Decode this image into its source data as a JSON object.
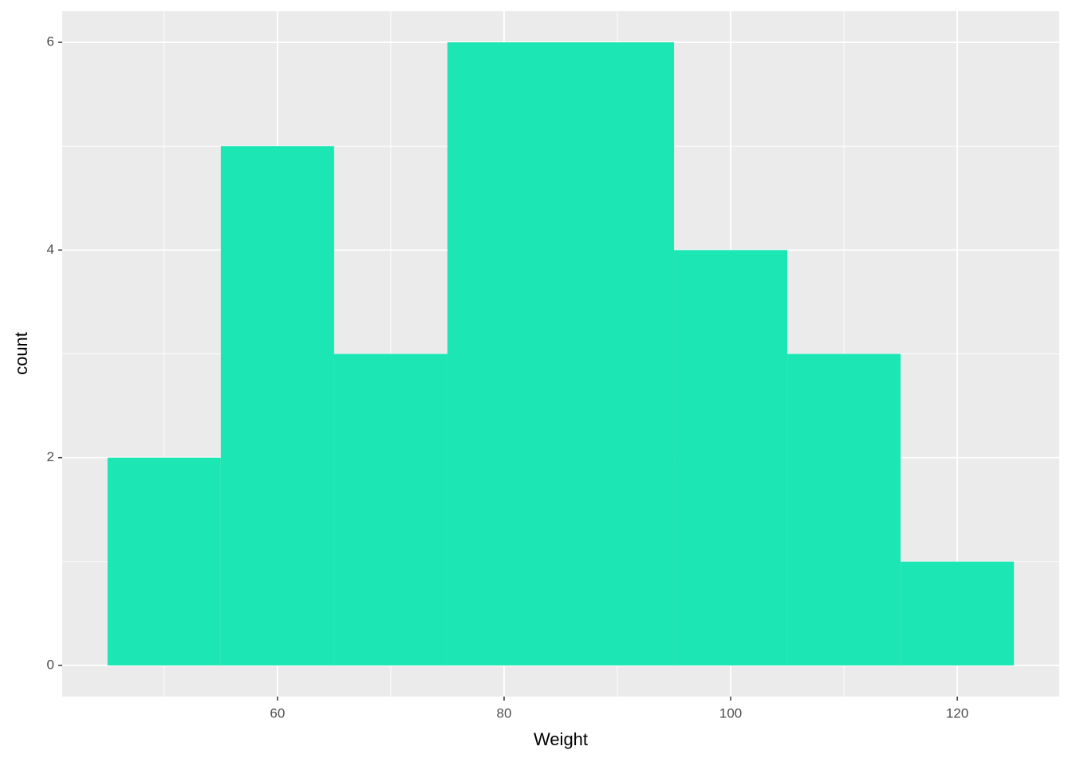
{
  "chart_data": {
    "type": "histogram",
    "x_label": "Weight",
    "y_label": "count",
    "bins": [
      45,
      55,
      65,
      75,
      85,
      95,
      105,
      115,
      125
    ],
    "values": [
      2,
      5,
      3,
      6,
      6,
      4,
      3,
      1
    ],
    "color": "#1ce6b4",
    "xlim": [
      41,
      129
    ],
    "xticks": [
      60,
      80,
      100,
      120
    ],
    "xminor": [
      50,
      70,
      90,
      110
    ],
    "ylim": [
      -0.3,
      6.3
    ],
    "yticks": [
      0,
      2,
      4,
      6
    ],
    "yminor": [
      1,
      3,
      5
    ],
    "grid": true
  }
}
